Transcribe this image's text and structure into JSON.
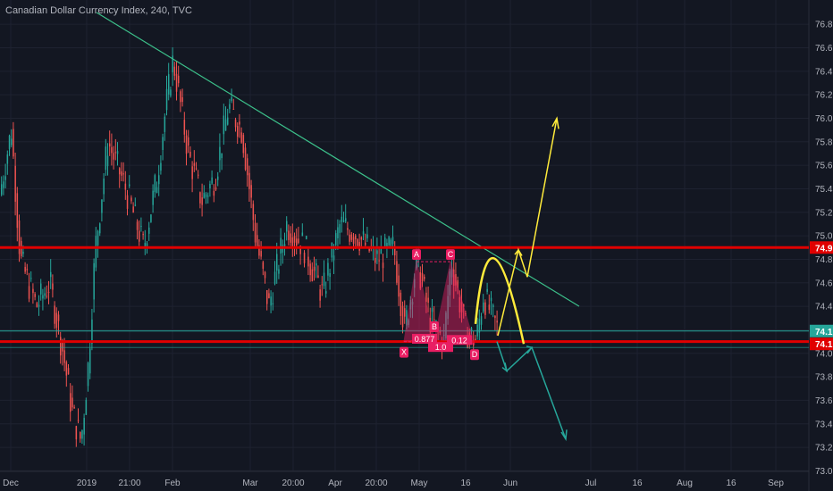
{
  "header": {
    "title": "Canadian Dollar Currency Index, 240, TVC"
  },
  "colors": {
    "background": "#131722",
    "grid": "#1e2230",
    "up": "#26a69a",
    "down": "#ef5350",
    "trendline": "#3cc08a",
    "level": "#e00000",
    "pattern": "#e91e63",
    "yellow": "#ffeb3b",
    "cyan": "#26a69a"
  },
  "chart_data": {
    "type": "candlestick",
    "title": "Canadian Dollar Currency Index, 240, TVC",
    "ylim": [
      72.95,
      76.9
    ],
    "y_ticks": [
      73.0,
      73.2,
      73.4,
      73.6,
      73.8,
      74.0,
      74.2,
      74.4,
      74.6,
      74.8,
      75.0,
      75.2,
      75.4,
      75.6,
      75.8,
      76.0,
      76.2,
      76.4,
      76.6,
      76.8
    ],
    "x_ticks": [
      "Dec",
      "2019",
      "21:00",
      "Feb",
      "Mar",
      "20:00",
      "Apr",
      "20:00",
      "May",
      "16",
      "Jun",
      "Jul",
      "16",
      "Aug",
      "16",
      "Sep"
    ],
    "price_tags": [
      {
        "label": "74.9",
        "value": 74.9,
        "color": "#e00000"
      },
      {
        "label": "74.1",
        "value": 74.1,
        "color": "#26a69a"
      },
      {
        "label": "74.1",
        "value": 74.1,
        "color": "#e00000"
      }
    ],
    "horizontal_levels": [
      74.9,
      74.1
    ],
    "harmonic_points": [
      "X",
      "A",
      "B",
      "C",
      "D"
    ],
    "harmonic_labels": [
      "0.877",
      "1.0",
      "0.12"
    ],
    "grid": true
  }
}
